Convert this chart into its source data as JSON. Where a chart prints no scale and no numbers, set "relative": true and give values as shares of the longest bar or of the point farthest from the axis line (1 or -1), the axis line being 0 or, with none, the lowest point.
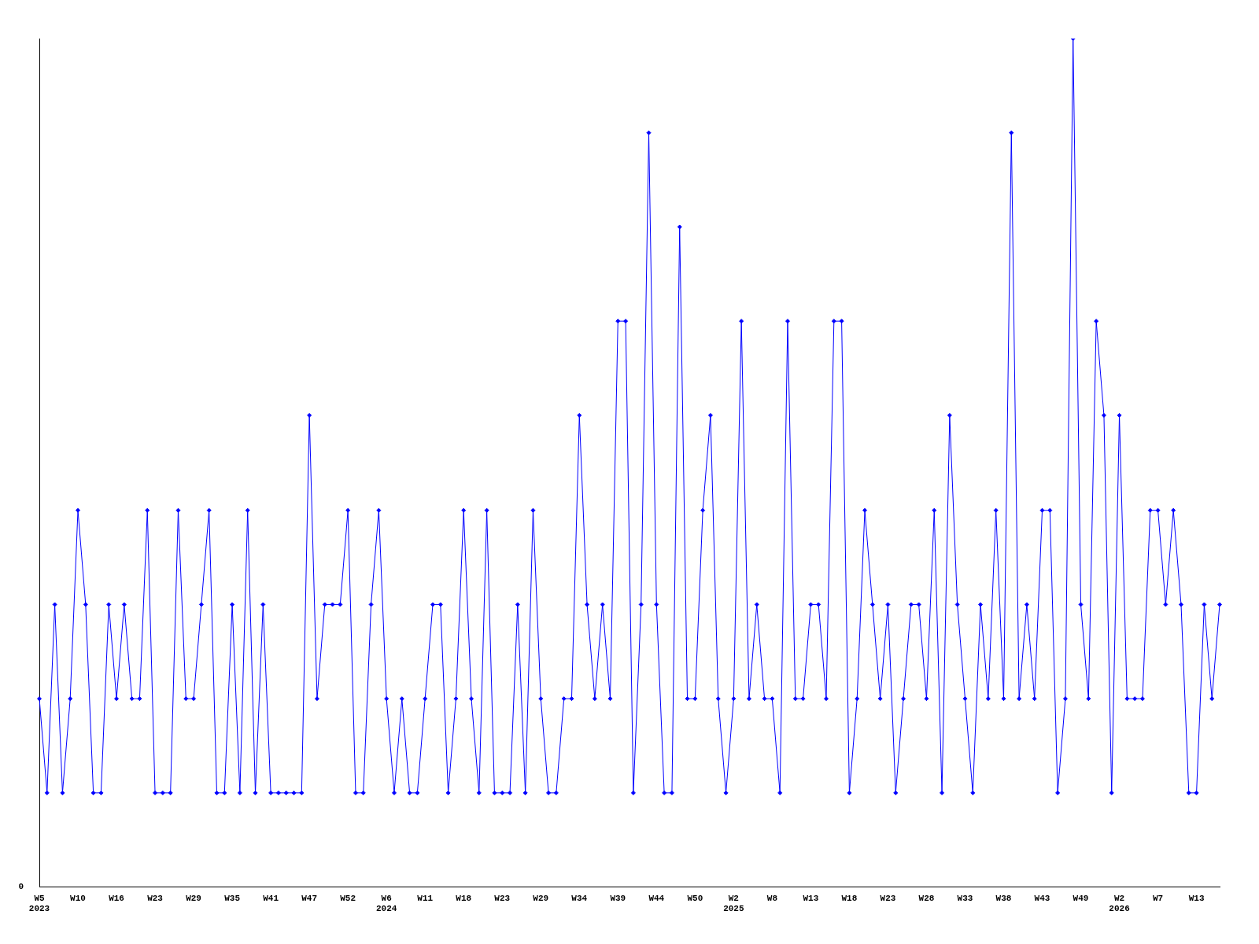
{
  "chart_data": {
    "type": "line",
    "relative": true,
    "grid": false,
    "legend": false,
    "marker": "diamond",
    "line_style": "solid",
    "annotations": [
      "0"
    ],
    "categories": [
      "W5\n2023",
      null,
      null,
      null,
      null,
      "W10",
      null,
      null,
      null,
      null,
      "W16",
      null,
      null,
      null,
      null,
      "W23",
      null,
      null,
      null,
      null,
      "W29",
      null,
      null,
      null,
      null,
      "W35",
      null,
      null,
      null,
      null,
      "W41",
      null,
      null,
      null,
      null,
      "W47",
      null,
      null,
      null,
      null,
      "W52",
      null,
      null,
      null,
      null,
      "W6\n2024",
      null,
      null,
      null,
      null,
      "W11",
      null,
      null,
      null,
      null,
      "W18",
      null,
      null,
      null,
      null,
      "W23",
      null,
      null,
      null,
      null,
      "W29",
      null,
      null,
      null,
      null,
      "W34",
      null,
      null,
      null,
      null,
      "W39",
      null,
      null,
      null,
      null,
      "W44",
      null,
      null,
      null,
      null,
      "W50",
      null,
      null,
      null,
      null,
      "W2\n2025",
      null,
      null,
      null,
      null,
      "W8",
      null,
      null,
      null,
      null,
      "W13",
      null,
      null,
      null,
      null,
      "W18",
      null,
      null,
      null,
      null,
      "W23",
      null,
      null,
      null,
      null,
      "W28",
      null,
      null,
      null,
      null,
      "W33",
      null,
      null,
      null,
      null,
      "W38",
      null,
      null,
      null,
      null,
      "W43",
      null,
      null,
      null,
      null,
      "W49",
      null,
      null,
      null,
      null,
      "W2\n2026",
      null,
      null,
      null,
      null,
      "W7",
      null,
      null,
      null,
      null,
      "W13",
      null,
      null,
      null
    ],
    "series": [
      {
        "color": "#0000ff",
        "values": [
          0.222,
          0.111,
          0.333,
          0.111,
          0.222,
          0.444,
          0.333,
          0.111,
          0.111,
          0.333,
          0.222,
          0.333,
          0.222,
          0.222,
          0.444,
          0.111,
          0.111,
          0.111,
          0.444,
          0.222,
          0.222,
          0.333,
          0.444,
          0.111,
          0.111,
          0.333,
          0.111,
          0.444,
          0.111,
          0.333,
          0.111,
          0.111,
          0.111,
          0.111,
          0.111,
          0.556,
          0.222,
          0.333,
          0.333,
          0.333,
          0.444,
          0.111,
          0.111,
          0.333,
          0.444,
          0.222,
          0.111,
          0.222,
          0.111,
          0.111,
          0.222,
          0.333,
          0.333,
          0.111,
          0.222,
          0.444,
          0.222,
          0.111,
          0.444,
          0.111,
          0.111,
          0.111,
          0.333,
          0.111,
          0.444,
          0.222,
          0.111,
          0.111,
          0.222,
          0.222,
          0.556,
          0.333,
          0.222,
          0.333,
          0.222,
          0.667,
          0.667,
          0.111,
          0.333,
          0.889,
          0.333,
          0.111,
          0.111,
          0.778,
          0.222,
          0.222,
          0.444,
          0.556,
          0.222,
          0.111,
          0.222,
          0.667,
          0.222,
          0.333,
          0.222,
          0.222,
          0.111,
          0.667,
          0.222,
          0.222,
          0.333,
          0.333,
          0.222,
          0.667,
          0.667,
          0.111,
          0.222,
          0.444,
          0.333,
          0.222,
          0.333,
          0.111,
          0.222,
          0.333,
          0.333,
          0.222,
          0.444,
          0.111,
          0.556,
          0.333,
          0.222,
          0.111,
          0.333,
          0.222,
          0.444,
          0.222,
          0.889,
          0.222,
          0.333,
          0.222,
          0.444,
          0.444,
          0.111,
          0.222,
          1,
          0.333,
          0.222,
          0.667,
          0.556,
          0.111,
          0.556,
          0.222,
          0.222,
          0.222,
          0.444,
          0.444,
          0.333,
          0.444,
          0.333,
          0.111,
          0.111,
          0.333,
          0.222,
          0.333
        ]
      }
    ]
  }
}
